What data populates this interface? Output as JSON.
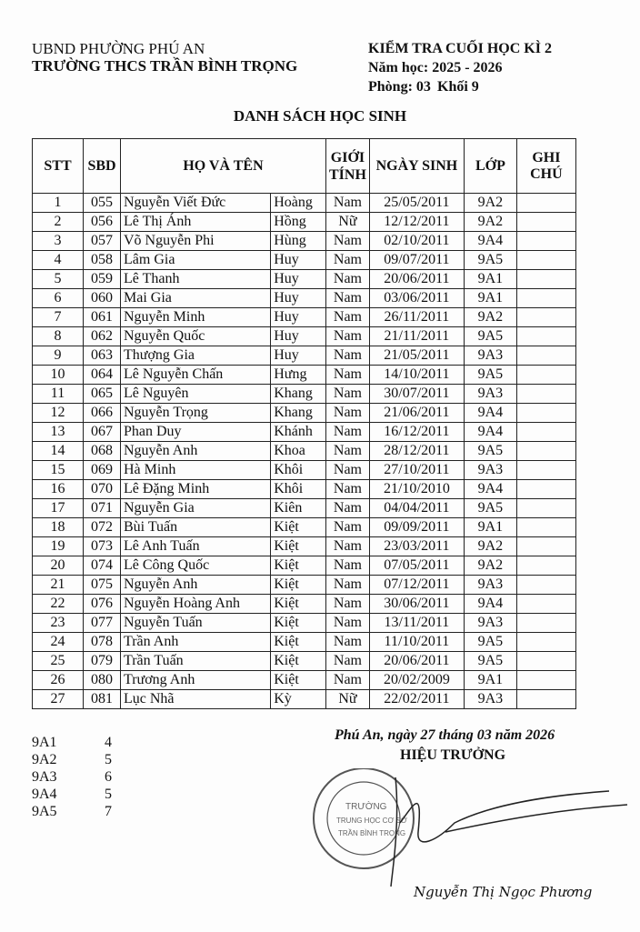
{
  "header": {
    "left_line1": "UBND PHƯỜNG PHÚ AN",
    "left_line2": "TRƯỜNG THCS TRẦN BÌNH TRỌNG",
    "right_line1": "KIỂM TRA CUỐI HỌC KÌ 2",
    "right_line2": "Năm học: 2025 - 2026",
    "room": "Phòng: 03",
    "grade": "Khối 9"
  },
  "title": "DANH SÁCH HỌC SINH",
  "columns": {
    "stt": "STT",
    "sbd": "SBD",
    "name": "HỌ VÀ TÊN",
    "gender_1": "GIỚI",
    "gender_2": "TÍNH",
    "dob": "NGÀY SINH",
    "class": "LỚP",
    "note": "GHI CHÚ"
  },
  "rows": [
    [
      "1",
      "055",
      "Nguyễn Viết Đức",
      "Hoàng",
      "Nam",
      "25/05/2011",
      "9A2"
    ],
    [
      "2",
      "056",
      "Lê Thị Ánh",
      "Hồng",
      "Nữ",
      "12/12/2011",
      "9A2"
    ],
    [
      "3",
      "057",
      "Võ Nguyễn Phi",
      "Hùng",
      "Nam",
      "02/10/2011",
      "9A4"
    ],
    [
      "4",
      "058",
      "Lâm Gia",
      "Huy",
      "Nam",
      "09/07/2011",
      "9A5"
    ],
    [
      "5",
      "059",
      "Lê Thanh",
      "Huy",
      "Nam",
      "20/06/2011",
      "9A1"
    ],
    [
      "6",
      "060",
      "Mai Gia",
      "Huy",
      "Nam",
      "03/06/2011",
      "9A1"
    ],
    [
      "7",
      "061",
      "Nguyễn Minh",
      "Huy",
      "Nam",
      "26/11/2011",
      "9A2"
    ],
    [
      "8",
      "062",
      "Nguyễn Quốc",
      "Huy",
      "Nam",
      "21/11/2011",
      "9A5"
    ],
    [
      "9",
      "063",
      "Thượng Gia",
      "Huy",
      "Nam",
      "21/05/2011",
      "9A3"
    ],
    [
      "10",
      "064",
      "Lê Nguyễn Chấn",
      "Hưng",
      "Nam",
      "14/10/2011",
      "9A5"
    ],
    [
      "11",
      "065",
      "Lê Nguyên",
      "Khang",
      "Nam",
      "30/07/2011",
      "9A3"
    ],
    [
      "12",
      "066",
      "Nguyễn Trọng",
      "Khang",
      "Nam",
      "21/06/2011",
      "9A4"
    ],
    [
      "13",
      "067",
      "Phan Duy",
      "Khánh",
      "Nam",
      "16/12/2011",
      "9A4"
    ],
    [
      "14",
      "068",
      "Nguyễn Anh",
      "Khoa",
      "Nam",
      "28/12/2011",
      "9A5"
    ],
    [
      "15",
      "069",
      "Hà Minh",
      "Khôi",
      "Nam",
      "27/10/2011",
      "9A3"
    ],
    [
      "16",
      "070",
      "Lê Đặng Minh",
      "Khôi",
      "Nam",
      "21/10/2010",
      "9A4"
    ],
    [
      "17",
      "071",
      "Nguyễn Gia",
      "Kiên",
      "Nam",
      "04/04/2011",
      "9A5"
    ],
    [
      "18",
      "072",
      "Bùi Tuấn",
      "Kiệt",
      "Nam",
      "09/09/2011",
      "9A1"
    ],
    [
      "19",
      "073",
      "Lê Anh Tuấn",
      "Kiệt",
      "Nam",
      "23/03/2011",
      "9A2"
    ],
    [
      "20",
      "074",
      "Lê Công Quốc",
      "Kiệt",
      "Nam",
      "07/05/2011",
      "9A2"
    ],
    [
      "21",
      "075",
      "Nguyễn Anh",
      "Kiệt",
      "Nam",
      "07/12/2011",
      "9A3"
    ],
    [
      "22",
      "076",
      "Nguyễn Hoàng Anh",
      "Kiệt",
      "Nam",
      "30/06/2011",
      "9A4"
    ],
    [
      "23",
      "077",
      "Nguyễn Tuấn",
      "Kiệt",
      "Nam",
      "13/11/2011",
      "9A3"
    ],
    [
      "24",
      "078",
      "Trần Anh",
      "Kiệt",
      "Nam",
      "11/10/2011",
      "9A5"
    ],
    [
      "25",
      "079",
      "Trần Tuấn",
      "Kiệt",
      "Nam",
      "20/06/2011",
      "9A5"
    ],
    [
      "26",
      "080",
      "Trương Anh",
      "Kiệt",
      "Nam",
      "20/02/2009",
      "9A1"
    ],
    [
      "27",
      "081",
      "Lục Nhã",
      "Kỳ",
      "Nữ",
      "22/02/2011",
      "9A3"
    ]
  ],
  "summary": [
    [
      "9A1",
      "4"
    ],
    [
      "9A2",
      "5"
    ],
    [
      "9A3",
      "6"
    ],
    [
      "9A4",
      "5"
    ],
    [
      "9A5",
      "7"
    ]
  ],
  "footer": {
    "place_date": "Phú An, ngày 27 tháng 03 năm 2026",
    "position": "HIỆU TRƯỞNG",
    "signer": "Nguyễn Thị Ngọc Phương",
    "stamp_text": "UBND PHƯỜNG PHÚ AN · TRƯỜNG TRUNG HỌC CƠ SỞ TRẦN BÌNH TRỌNG",
    "stamp_color": "#3a3a3a"
  }
}
